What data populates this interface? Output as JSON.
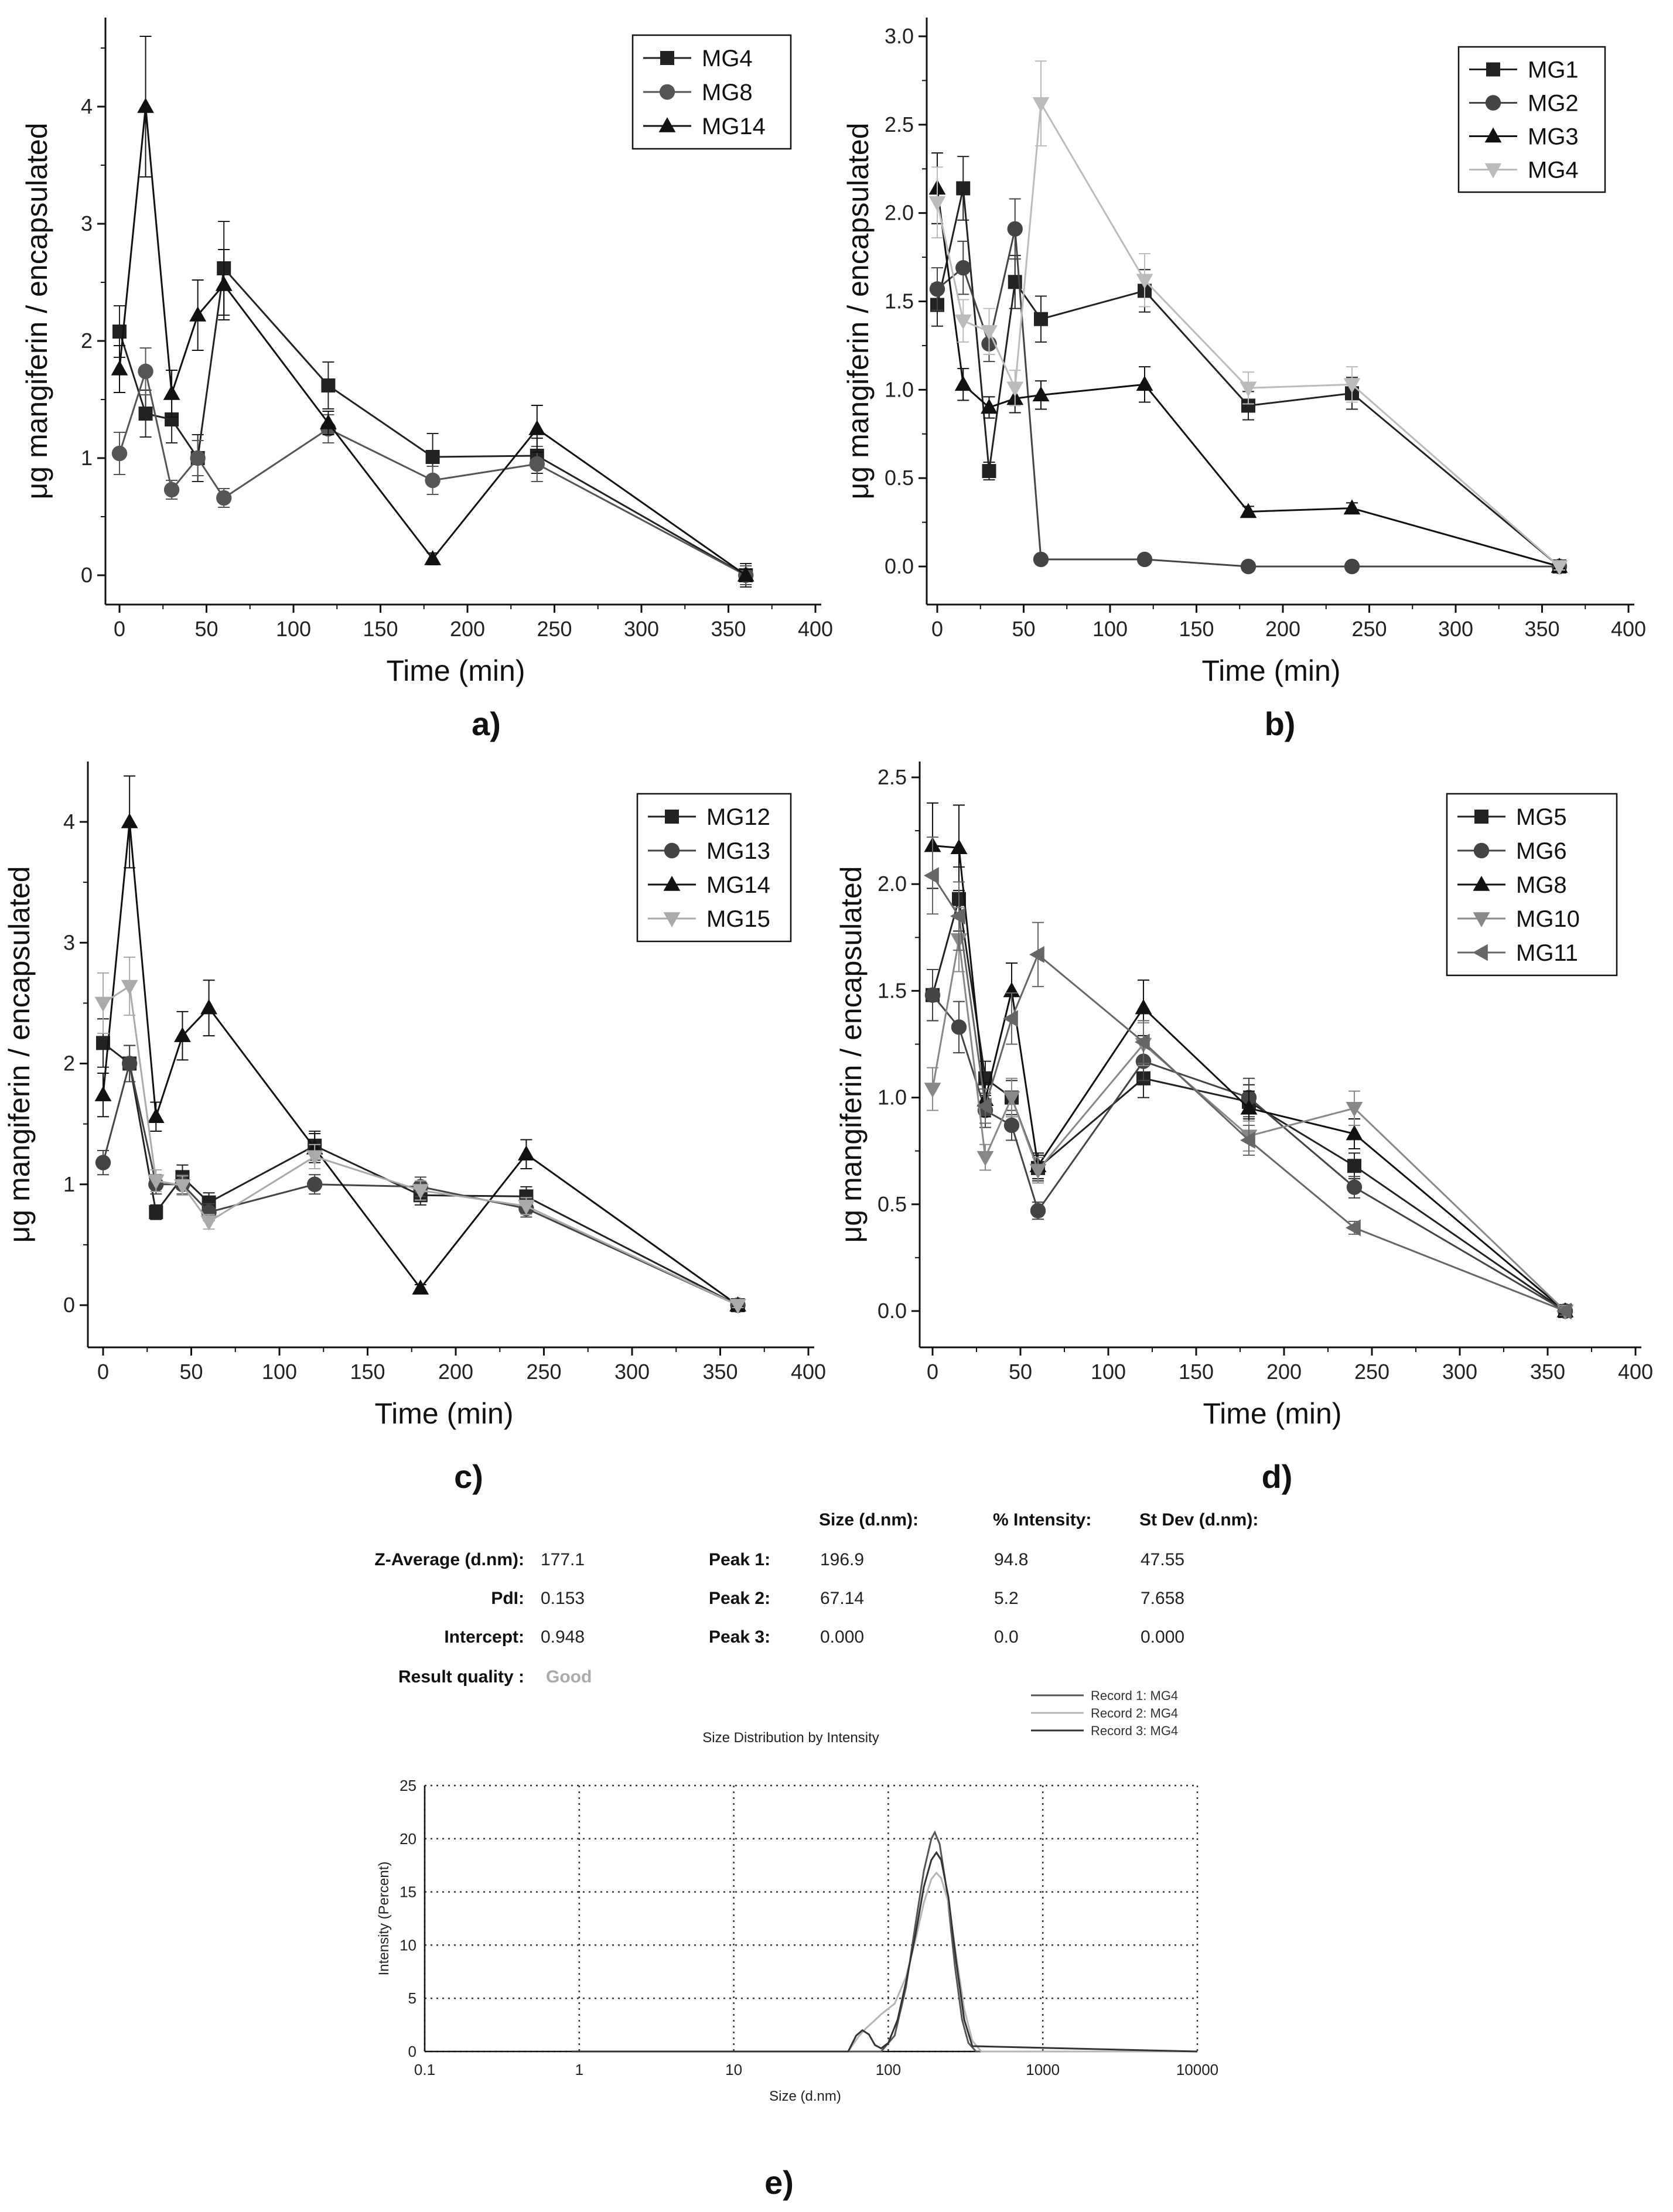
{
  "chart_data": [
    {
      "id": "a",
      "type": "line",
      "panel_label": "a)",
      "xlabel": "Time (min)",
      "ylabel": "μg mangiferin / encapsulated",
      "xlim": [
        -8,
        400
      ],
      "ylim": [
        -0.3,
        4.75
      ],
      "xticks": [
        0,
        50,
        100,
        150,
        200,
        250,
        300,
        350,
        400
      ],
      "yticks": [
        0,
        1,
        2,
        3,
        4
      ],
      "ytick_labels": [
        "0",
        "1",
        "2",
        "3",
        "4"
      ],
      "legend_position": "top-right",
      "series": [
        {
          "name": "MG4",
          "marker": "square",
          "color": "#222222",
          "x": [
            0,
            15,
            30,
            45,
            60,
            120,
            180,
            240,
            360
          ],
          "y": [
            2.08,
            1.38,
            1.33,
            1.0,
            2.62,
            1.62,
            1.01,
            1.02,
            0.0
          ],
          "err": [
            0.22,
            0.2,
            0.2,
            0.2,
            0.4,
            0.2,
            0.2,
            0.15,
            0.1
          ]
        },
        {
          "name": "MG8",
          "marker": "circle",
          "color": "#555555",
          "x": [
            0,
            15,
            30,
            45,
            60,
            120,
            180,
            240,
            360
          ],
          "y": [
            1.04,
            1.74,
            0.73,
            1.0,
            0.66,
            1.25,
            0.81,
            0.95,
            0.0
          ],
          "err": [
            0.18,
            0.2,
            0.08,
            0.15,
            0.08,
            0.12,
            0.12,
            0.15,
            0.08
          ]
        },
        {
          "name": "MG14",
          "marker": "triangle-up",
          "color": "#111111",
          "x": [
            0,
            15,
            30,
            45,
            60,
            120,
            180,
            240,
            360
          ],
          "y": [
            1.76,
            4.0,
            1.55,
            2.22,
            2.48,
            1.3,
            0.14,
            1.25,
            0.0
          ],
          "err": [
            0.2,
            0.6,
            0.2,
            0.3,
            0.3,
            0.1,
            0.05,
            0.2,
            0.05
          ]
        }
      ]
    },
    {
      "id": "b",
      "type": "line",
      "panel_label": "b)",
      "xlabel": "Time (min)",
      "ylabel": "μg mangiferin / encapsulated",
      "xlim": [
        -8,
        400
      ],
      "ylim": [
        -0.15,
        3.0
      ],
      "xticks": [
        0,
        50,
        100,
        150,
        200,
        250,
        300,
        350,
        400
      ],
      "yticks": [
        0.0,
        0.5,
        1.0,
        1.5,
        2.0,
        2.5,
        3.0
      ],
      "ytick_labels": [
        "0.0",
        "0.5",
        "1.0",
        "1.5",
        "2.0",
        "2.5",
        "3.0"
      ],
      "legend_position": "top-right",
      "series": [
        {
          "name": "MG1",
          "marker": "square",
          "color": "#222222",
          "x": [
            0,
            15,
            30,
            45,
            60,
            120,
            180,
            240,
            360
          ],
          "y": [
            1.48,
            2.14,
            0.54,
            1.61,
            1.4,
            1.56,
            0.91,
            0.98,
            0.0
          ],
          "err": [
            0.12,
            0.18,
            0.05,
            0.15,
            0.13,
            0.12,
            0.08,
            0.09,
            0.02
          ]
        },
        {
          "name": "MG2",
          "marker": "circle",
          "color": "#444444",
          "x": [
            0,
            15,
            30,
            45,
            60,
            120,
            180,
            240,
            360
          ],
          "y": [
            1.57,
            1.69,
            1.26,
            1.91,
            0.04,
            0.04,
            0.0,
            0.0,
            0.0
          ],
          "err": [
            0.12,
            0.15,
            0.1,
            0.17,
            0.01,
            0.01,
            0.01,
            0.01,
            0.01
          ]
        },
        {
          "name": "MG3",
          "marker": "triangle-up",
          "color": "#111111",
          "x": [
            0,
            15,
            30,
            45,
            60,
            120,
            180,
            240,
            360
          ],
          "y": [
            2.14,
            1.03,
            0.9,
            0.95,
            0.97,
            1.03,
            0.31,
            0.33,
            0.0
          ],
          "err": [
            0.2,
            0.09,
            0.06,
            0.08,
            0.08,
            0.1,
            0.03,
            0.03,
            0.02
          ]
        },
        {
          "name": "MG4",
          "marker": "triangle-down",
          "color": "#bbbbbb",
          "x": [
            0,
            15,
            30,
            45,
            60,
            120,
            180,
            240,
            360
          ],
          "y": [
            2.06,
            1.39,
            1.33,
            1.01,
            2.62,
            1.62,
            1.01,
            1.03,
            0.0
          ],
          "err": [
            0.2,
            0.12,
            0.13,
            0.1,
            0.24,
            0.15,
            0.09,
            0.1,
            0.02
          ]
        }
      ]
    },
    {
      "id": "c",
      "type": "line",
      "panel_label": "c)",
      "xlabel": "Time (min)",
      "ylabel": "μg mangiferin / encapsulated",
      "xlim": [
        -8,
        400
      ],
      "ylim": [
        -0.3,
        4.5
      ],
      "xticks": [
        0,
        50,
        100,
        150,
        200,
        250,
        300,
        350,
        400
      ],
      "yticks": [
        0,
        1,
        2,
        3,
        4
      ],
      "ytick_labels": [
        "0",
        "1",
        "2",
        "3",
        "4"
      ],
      "legend_position": "top-right",
      "series": [
        {
          "name": "MG12",
          "marker": "square",
          "color": "#222222",
          "x": [
            0,
            15,
            30,
            45,
            60,
            120,
            180,
            240,
            360
          ],
          "y": [
            2.17,
            2.0,
            0.77,
            1.06,
            0.85,
            1.32,
            0.91,
            0.9,
            0.0
          ],
          "err": [
            0.2,
            0.15,
            0.06,
            0.1,
            0.08,
            0.12,
            0.08,
            0.08,
            0.02
          ]
        },
        {
          "name": "MG13",
          "marker": "circle",
          "color": "#444444",
          "x": [
            0,
            15,
            30,
            45,
            60,
            120,
            180,
            240,
            360
          ],
          "y": [
            1.18,
            2.0,
            1.0,
            1.0,
            0.77,
            1.0,
            0.98,
            0.8,
            0.0
          ],
          "err": [
            0.1,
            0.15,
            0.08,
            0.08,
            0.07,
            0.08,
            0.08,
            0.07,
            0.02
          ]
        },
        {
          "name": "MG14",
          "marker": "triangle-up",
          "color": "#111111",
          "x": [
            0,
            15,
            30,
            45,
            60,
            120,
            180,
            240,
            360
          ],
          "y": [
            1.74,
            4.0,
            1.56,
            2.23,
            2.46,
            1.3,
            0.14,
            1.25,
            0.0
          ],
          "err": [
            0.18,
            0.38,
            0.12,
            0.2,
            0.23,
            0.12,
            0.03,
            0.12,
            0.02
          ]
        },
        {
          "name": "MG15",
          "marker": "triangle-down",
          "color": "#aaaaaa",
          "x": [
            0,
            15,
            30,
            45,
            60,
            120,
            180,
            240,
            360
          ],
          "y": [
            2.5,
            2.64,
            1.03,
            0.99,
            0.69,
            1.23,
            0.95,
            0.82,
            0.0
          ],
          "err": [
            0.25,
            0.24,
            0.09,
            0.08,
            0.06,
            0.1,
            0.08,
            0.07,
            0.02
          ]
        }
      ]
    },
    {
      "id": "d",
      "type": "line",
      "panel_label": "d)",
      "xlabel": "Time (min)",
      "ylabel": "μg mangiferin / encapsulated",
      "xlim": [
        -8,
        400
      ],
      "ylim": [
        -0.15,
        2.5
      ],
      "xticks": [
        0,
        50,
        100,
        150,
        200,
        250,
        300,
        350,
        400
      ],
      "yticks": [
        0.0,
        0.5,
        1.0,
        1.5,
        2.0,
        2.5
      ],
      "ytick_labels": [
        "0.0",
        "0.5",
        "1.0",
        "1.5",
        "2.0",
        "2.5"
      ],
      "legend_position": "top-right",
      "series": [
        {
          "name": "MG5",
          "marker": "square",
          "color": "#222222",
          "x": [
            0,
            15,
            30,
            45,
            60,
            120,
            180,
            240,
            360
          ],
          "y": [
            1.48,
            1.93,
            1.09,
            1.0,
            0.67,
            1.09,
            0.98,
            0.68,
            0.0
          ],
          "err": [
            0.12,
            0.15,
            0.08,
            0.08,
            0.06,
            0.09,
            0.08,
            0.06,
            0.02
          ]
        },
        {
          "name": "MG6",
          "marker": "circle",
          "color": "#444444",
          "x": [
            0,
            15,
            30,
            45,
            60,
            120,
            180,
            240,
            360
          ],
          "y": [
            1.48,
            1.33,
            0.94,
            0.87,
            0.47,
            1.17,
            1.0,
            0.58,
            0.0
          ],
          "err": [
            0.12,
            0.12,
            0.08,
            0.07,
            0.04,
            0.09,
            0.09,
            0.05,
            0.02
          ]
        },
        {
          "name": "MG8",
          "marker": "triangle-up",
          "color": "#111111",
          "x": [
            0,
            15,
            30,
            45,
            60,
            120,
            180,
            240,
            360
          ],
          "y": [
            2.18,
            2.17,
            0.99,
            1.5,
            0.68,
            1.42,
            0.95,
            0.83,
            0.0
          ],
          "err": [
            0.2,
            0.2,
            0.08,
            0.13,
            0.06,
            0.13,
            0.08,
            0.07,
            0.02
          ]
        },
        {
          "name": "MG10",
          "marker": "triangle-down",
          "color": "#888888",
          "x": [
            0,
            15,
            30,
            45,
            60,
            120,
            180,
            240,
            360
          ],
          "y": [
            1.04,
            1.74,
            0.72,
            1.0,
            0.66,
            1.25,
            0.82,
            0.95,
            0.0
          ],
          "err": [
            0.1,
            0.15,
            0.06,
            0.09,
            0.06,
            0.1,
            0.07,
            0.08,
            0.02
          ]
        },
        {
          "name": "MG11",
          "marker": "triangle-left",
          "color": "#666666",
          "x": [
            0,
            15,
            30,
            45,
            60,
            120,
            180,
            240,
            360
          ],
          "y": [
            2.04,
            1.85,
            0.96,
            1.37,
            1.67,
            1.26,
            0.8,
            0.39,
            0.0
          ],
          "err": [
            0.18,
            0.16,
            0.08,
            0.12,
            0.15,
            0.1,
            0.07,
            0.03,
            0.02
          ]
        }
      ]
    },
    {
      "id": "e",
      "type": "line",
      "panel_label": "e)",
      "title": "Size Distribution by Intensity",
      "xlabel": "Size (d.nm)",
      "ylabel": "Intensity (Percent)",
      "xscale": "log",
      "xlim": [
        0.1,
        10000
      ],
      "ylim": [
        0,
        25
      ],
      "xticks": [
        0.1,
        1,
        10,
        100,
        1000,
        10000
      ],
      "xtick_labels": [
        "0.1",
        "1",
        "10",
        "100",
        "1000",
        "10000"
      ],
      "yticks": [
        0,
        5,
        10,
        15,
        20,
        25
      ],
      "ytick_labels": [
        "0",
        "5",
        "10",
        "15",
        "20",
        "25"
      ],
      "grid": true,
      "legend_position": "top-right",
      "series": [
        {
          "name": "Record 1: MG4",
          "color": "#555555",
          "x": [
            30,
            90,
            110,
            130,
            150,
            170,
            190,
            200,
            215,
            240,
            270,
            300,
            330,
            370,
            10000
          ],
          "y": [
            0,
            0,
            1.5,
            6,
            12,
            17,
            20,
            20.6,
            19.5,
            15,
            8,
            3,
            0.8,
            0,
            0
          ]
        },
        {
          "name": "Record 2: MG4",
          "color": "#b5b5b5",
          "x": [
            30,
            55,
            65,
            72,
            80,
            90,
            110,
            130,
            150,
            170,
            190,
            205,
            220,
            245,
            275,
            310,
            350,
            400,
            10000
          ],
          "y": [
            0,
            0,
            1.5,
            2.2,
            2.8,
            3.5,
            4.5,
            7,
            10.5,
            14,
            16.2,
            16.8,
            16.3,
            14,
            9,
            4,
            1,
            0,
            0
          ]
        },
        {
          "name": "Record 3: MG4",
          "color": "#333333",
          "x": [
            30,
            55,
            62,
            68,
            75,
            82,
            90,
            100,
            115,
            130,
            150,
            170,
            190,
            205,
            220,
            245,
            275,
            310,
            350,
            10000
          ],
          "y": [
            0,
            0,
            1.5,
            2.0,
            1.6,
            0.6,
            0.3,
            0.8,
            3,
            6.5,
            11,
            15.5,
            18,
            18.7,
            18,
            14.5,
            8.5,
            3,
            0.5,
            0
          ]
        }
      ]
    }
  ],
  "dls_summary": {
    "col_headers": {
      "size": "Size (d.nm):",
      "intensity": "% Intensity:",
      "stdev": "St Dev (d.nm):"
    },
    "left_rows": [
      {
        "label": "Z-Average (d.nm):",
        "value": "177.1"
      },
      {
        "label": "PdI:",
        "value": "0.153"
      },
      {
        "label": "Intercept:",
        "value": "0.948"
      }
    ],
    "peaks": [
      {
        "label": "Peak 1:",
        "size": "196.9",
        "intensity": "94.8",
        "stdev": "47.55"
      },
      {
        "label": "Peak 2:",
        "size": "67.14",
        "intensity": "5.2",
        "stdev": "7.658"
      },
      {
        "label": "Peak 3:",
        "size": "0.000",
        "intensity": "0.0",
        "stdev": "0.000"
      }
    ],
    "result_quality_label": "Result quality :",
    "result_quality_value": "Good"
  }
}
